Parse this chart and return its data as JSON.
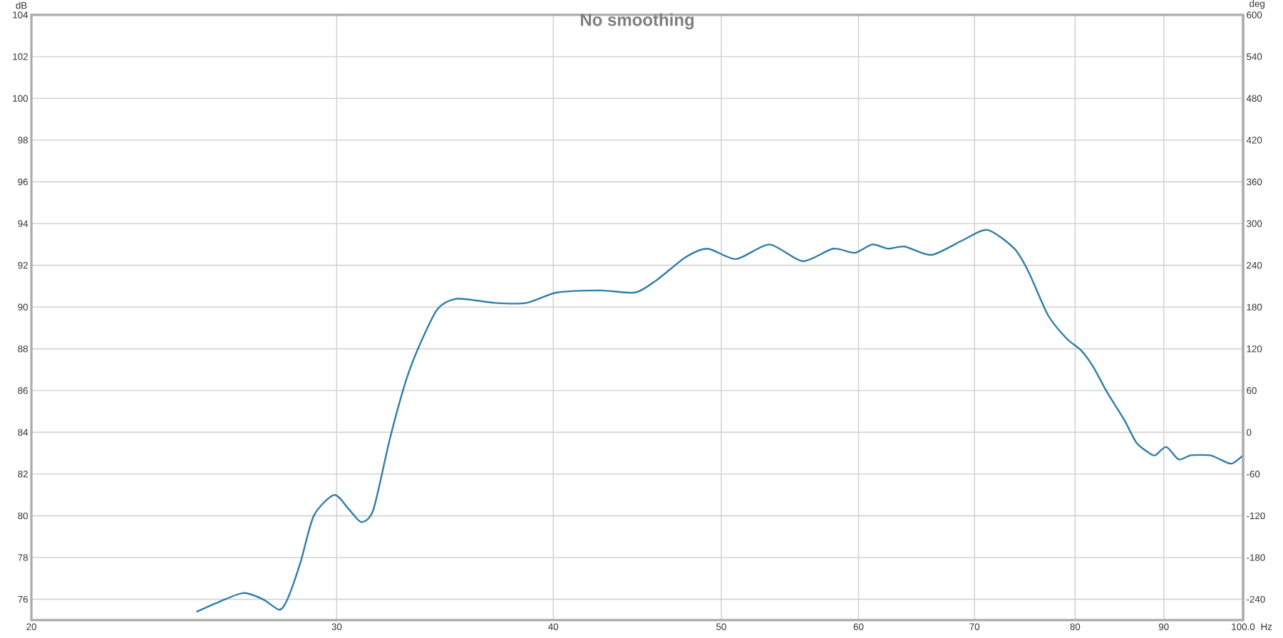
{
  "chart_data": {
    "type": "line",
    "title": "No smoothing",
    "xlabel": "Hz",
    "ylabel": "dB",
    "y2label": "deg",
    "x": [
      24.9,
      25.7,
      26.5,
      27.2,
      27.8,
      28.1,
      28.6,
      29.1,
      29.9,
      30.5,
      31.0,
      31.5,
      32.2,
      32.9,
      33.5,
      34.3,
      35.2,
      37.0,
      38.6,
      40.2,
      42.6,
      44.6,
      45.9,
      47.7,
      49.1,
      51.0,
      53.3,
      55.7,
      58.0,
      59.7,
      61.1,
      62.4,
      63.8,
      66.1,
      68.9,
      71.2,
      73.8,
      75.2,
      77.2,
      79.1,
      80.7,
      82.0,
      83.5,
      85.4,
      86.8,
      88.3,
      89.0,
      90.3,
      91.8,
      93.3,
      95.7,
      97.0,
      98.5,
      100
    ],
    "series": [
      {
        "color": "#2f7ea8",
        "values": [
          75.4,
          75.9,
          76.3,
          76.0,
          75.5,
          76.0,
          77.8,
          80.0,
          81.0,
          80.3,
          79.7,
          80.3,
          83.7,
          86.5,
          88.2,
          89.9,
          90.4,
          90.2,
          90.2,
          90.7,
          90.8,
          90.7,
          91.3,
          92.4,
          92.8,
          92.3,
          93.0,
          92.2,
          92.8,
          92.6,
          93.0,
          92.8,
          92.9,
          92.5,
          93.2,
          93.7,
          92.8,
          91.7,
          89.6,
          88.5,
          87.9,
          87.1,
          85.9,
          84.6,
          83.5,
          83.0,
          82.9,
          83.3,
          82.7,
          82.9,
          82.9,
          82.7,
          82.5,
          82.9
        ]
      }
    ],
    "xlim": [
      20,
      100
    ],
    "xticks": [
      20,
      30,
      40,
      50,
      60,
      70,
      80,
      90,
      {
        "value": 100,
        "label": "100.0"
      }
    ],
    "ylim": [
      75,
      104
    ],
    "yticks": [
      76,
      78,
      80,
      82,
      84,
      86,
      88,
      90,
      92,
      94,
      96,
      98,
      100,
      102,
      104
    ],
    "y2lim": [
      -270,
      600
    ],
    "y2ticks": [
      -240,
      -180,
      -120,
      -60,
      0,
      60,
      120,
      180,
      240,
      300,
      360,
      420,
      480,
      540,
      600
    ],
    "log": "x",
    "grid": true
  }
}
